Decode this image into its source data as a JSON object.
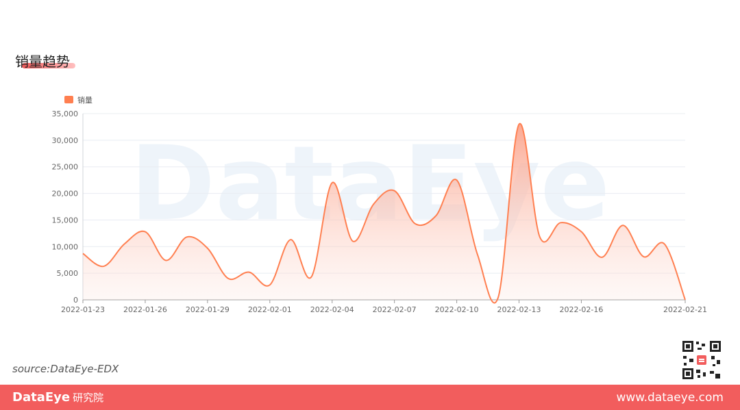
{
  "page": {
    "title": "销量趋势",
    "source": "source:DataEye-EDX",
    "footer_brand": "DataEye",
    "footer_brand_sub": "研究院",
    "footer_site": "www.dataeye.com",
    "watermark": "DataEye"
  },
  "colors": {
    "accent": "#f25d5d",
    "series": "#ff7f50"
  },
  "chart_data": {
    "type": "area",
    "legend_position": "top-left",
    "grid": true,
    "ylim": [
      0,
      35000
    ],
    "y_ticks": [
      "0",
      "5,000",
      "10,000",
      "15,000",
      "20,000",
      "25,000",
      "30,000",
      "35,000"
    ],
    "x_tick_labels": [
      "2022-01-23",
      "2022-01-26",
      "2022-01-29",
      "2022-02-01",
      "2022-02-04",
      "2022-02-07",
      "2022-02-10",
      "2022-02-13",
      "2022-02-16",
      "2022-02-21"
    ],
    "x": [
      "2022-01-23",
      "2022-01-24",
      "2022-01-25",
      "2022-01-26",
      "2022-01-27",
      "2022-01-28",
      "2022-01-29",
      "2022-01-30",
      "2022-01-31",
      "2022-02-01",
      "2022-02-02",
      "2022-02-03",
      "2022-02-04",
      "2022-02-05",
      "2022-02-06",
      "2022-02-07",
      "2022-02-08",
      "2022-02-09",
      "2022-02-10",
      "2022-02-11",
      "2022-02-12",
      "2022-02-13",
      "2022-02-14",
      "2022-02-15",
      "2022-02-16",
      "2022-02-17",
      "2022-02-18",
      "2022-02-19",
      "2022-02-20",
      "2022-02-21"
    ],
    "series": [
      {
        "name": "销量",
        "values": [
          8700,
          6300,
          10500,
          12800,
          7400,
          11800,
          9700,
          4000,
          5200,
          2800,
          11300,
          4300,
          22000,
          11000,
          18000,
          20500,
          14300,
          15800,
          22500,
          8500,
          500,
          33000,
          11800,
          14500,
          12800,
          8000,
          14000,
          8100,
          10500,
          0
        ]
      }
    ]
  }
}
